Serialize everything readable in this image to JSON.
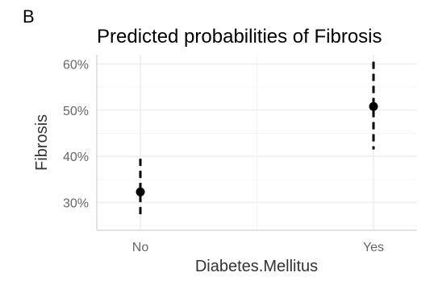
{
  "panel_label": "B",
  "chart_data": {
    "type": "scatter",
    "title": "Predicted probabilities of Fibrosis",
    "xlabel": "Diabetes.Mellitus",
    "ylabel": "Fibrosis",
    "categories": [
      "No",
      "Yes"
    ],
    "values": [
      0.323,
      0.508
    ],
    "ci_lower": [
      0.265,
      0.415
    ],
    "ci_upper": [
      0.395,
      0.605
    ],
    "ylim": [
      0.24,
      0.62
    ],
    "yticks": [
      0.3,
      0.4,
      0.5,
      0.6
    ],
    "ytick_labels": [
      "30%",
      "40%",
      "50%",
      "60%"
    ],
    "error_style": "dashed",
    "grid": true,
    "legend": "none"
  }
}
